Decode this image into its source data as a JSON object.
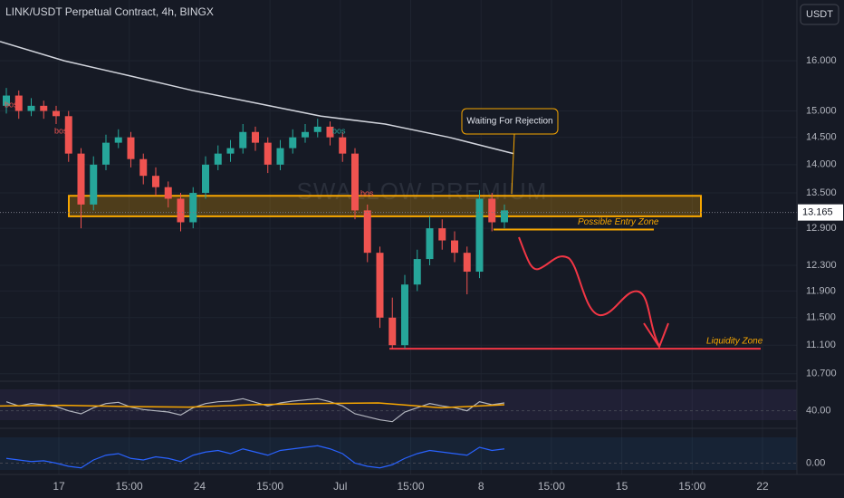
{
  "chart_data": {
    "type": "candlestick",
    "title": "LINK/USDT Perpetual Contract, 4h, BINGX",
    "currency": "USDT",
    "up_color": "#26a69a",
    "down_color": "#ef5350",
    "log": true,
    "ylim": [
      10.61,
      17.3
    ],
    "yticks": [
      {
        "value": 16,
        "label": "16.000"
      },
      {
        "value": 15,
        "label": "15.000"
      },
      {
        "value": 14.5,
        "label": "14.500"
      },
      {
        "value": 14,
        "label": "14.000"
      },
      {
        "value": 13.5,
        "label": "13.500"
      },
      {
        "value": 12.9,
        "label": "12.900"
      },
      {
        "value": 12.3,
        "label": "12.300"
      },
      {
        "value": 11.9,
        "label": "11.900"
      },
      {
        "value": 11.5,
        "label": "11.500"
      },
      {
        "value": 11.1,
        "label": "11.100"
      },
      {
        "value": 10.7,
        "label": "10.700"
      }
    ],
    "last_price": 13.165,
    "xlabels": [
      "17",
      "15:00",
      "24",
      "15:00",
      "Jul",
      "15:00",
      "8",
      "15:00",
      "15",
      "15:00",
      "22"
    ],
    "ohlc": [
      [
        15.1,
        15.45,
        14.95,
        15.3
      ],
      [
        15.3,
        15.4,
        14.85,
        15.0
      ],
      [
        15.0,
        15.25,
        14.9,
        15.1
      ],
      [
        15.1,
        15.2,
        14.85,
        15.0
      ],
      [
        15.0,
        15.1,
        14.75,
        14.9
      ],
      [
        14.9,
        15.0,
        14.05,
        14.2
      ],
      [
        14.2,
        14.3,
        12.9,
        13.3
      ],
      [
        13.3,
        14.15,
        13.2,
        14.0
      ],
      [
        14.0,
        14.55,
        13.9,
        14.4
      ],
      [
        14.4,
        14.65,
        14.3,
        14.5
      ],
      [
        14.5,
        14.6,
        13.95,
        14.1
      ],
      [
        14.1,
        14.2,
        13.65,
        13.8
      ],
      [
        13.8,
        13.95,
        13.45,
        13.6
      ],
      [
        13.6,
        13.7,
        13.25,
        13.4
      ],
      [
        13.4,
        13.5,
        12.85,
        13.0
      ],
      [
        13.0,
        13.6,
        12.9,
        13.5
      ],
      [
        13.5,
        14.15,
        13.4,
        14.0
      ],
      [
        14.0,
        14.35,
        13.9,
        14.2
      ],
      [
        14.2,
        14.45,
        14.05,
        14.3
      ],
      [
        14.3,
        14.75,
        14.2,
        14.6
      ],
      [
        14.6,
        14.7,
        14.25,
        14.4
      ],
      [
        14.4,
        14.5,
        13.85,
        14.0
      ],
      [
        14.0,
        14.45,
        13.9,
        14.3
      ],
      [
        14.3,
        14.65,
        14.2,
        14.5
      ],
      [
        14.5,
        14.75,
        14.4,
        14.6
      ],
      [
        14.6,
        14.85,
        14.5,
        14.7
      ],
      [
        14.7,
        14.8,
        14.35,
        14.5
      ],
      [
        14.5,
        14.6,
        14.05,
        14.2
      ],
      [
        14.2,
        14.3,
        13.05,
        13.2
      ],
      [
        13.2,
        13.3,
        12.35,
        12.5
      ],
      [
        12.5,
        12.6,
        11.35,
        11.5
      ],
      [
        11.5,
        11.8,
        11.05,
        11.1
      ],
      [
        11.1,
        12.15,
        11.05,
        12.0
      ],
      [
        12.0,
        12.55,
        11.9,
        12.4
      ],
      [
        12.4,
        13.1,
        12.3,
        12.9
      ],
      [
        12.9,
        13.05,
        12.55,
        12.7
      ],
      [
        12.7,
        12.85,
        12.35,
        12.5
      ],
      [
        12.5,
        12.6,
        11.85,
        12.2
      ],
      [
        12.2,
        13.55,
        12.1,
        13.4
      ],
      [
        13.4,
        13.5,
        12.85,
        13.0
      ],
      [
        13.0,
        13.3,
        12.9,
        13.2
      ]
    ],
    "long_ma": [
      16.4,
      16.0,
      15.7,
      15.4,
      15.15,
      14.9,
      14.75,
      14.5,
      14.2
    ],
    "annotations": {
      "callout": "Waiting For Rejection",
      "zone": {
        "low": 13.1,
        "high": 13.45
      },
      "entry_zone": {
        "label": "Possible Entry Zone",
        "value": 12.88
      },
      "liquidity_zone": {
        "label": "Liquidity Zone",
        "value": 11.05
      },
      "bos": [
        "bos",
        "bos",
        "bos",
        "bos"
      ],
      "watermark": "SWALLOW PREMIUM"
    },
    "indicators": [
      {
        "ylim": [
          20,
          80
        ],
        "yticks": [
          {
            "value": 40,
            "label": "40.00"
          }
        ],
        "values": [
          55,
          48,
          52,
          50,
          47,
          40,
          35,
          45,
          52,
          54,
          46,
          42,
          40,
          38,
          33,
          45,
          52,
          55,
          56,
          60,
          54,
          48,
          53,
          56,
          58,
          60,
          55,
          48,
          35,
          30,
          25,
          22,
          38,
          45,
          52,
          48,
          45,
          40,
          55,
          50,
          53
        ],
        "signal": [
          48,
          49,
          47,
          46,
          50,
          52,
          53,
          45,
          50
        ]
      },
      {
        "ylim": [
          -0.6,
          1.8
        ],
        "yticks": [
          {
            "value": 0,
            "label": "0.00"
          }
        ],
        "values": [
          0.3,
          0.2,
          0.1,
          0.15,
          0.0,
          -0.2,
          -0.3,
          0.2,
          0.5,
          0.6,
          0.3,
          0.2,
          0.4,
          0.3,
          0.1,
          0.5,
          0.7,
          0.8,
          0.6,
          0.9,
          0.7,
          0.5,
          0.8,
          0.9,
          1.0,
          1.1,
          0.9,
          0.6,
          0.0,
          -0.2,
          -0.3,
          -0.1,
          0.3,
          0.6,
          0.8,
          0.7,
          0.6,
          0.5,
          1.0,
          0.8,
          0.9
        ]
      }
    ]
  }
}
